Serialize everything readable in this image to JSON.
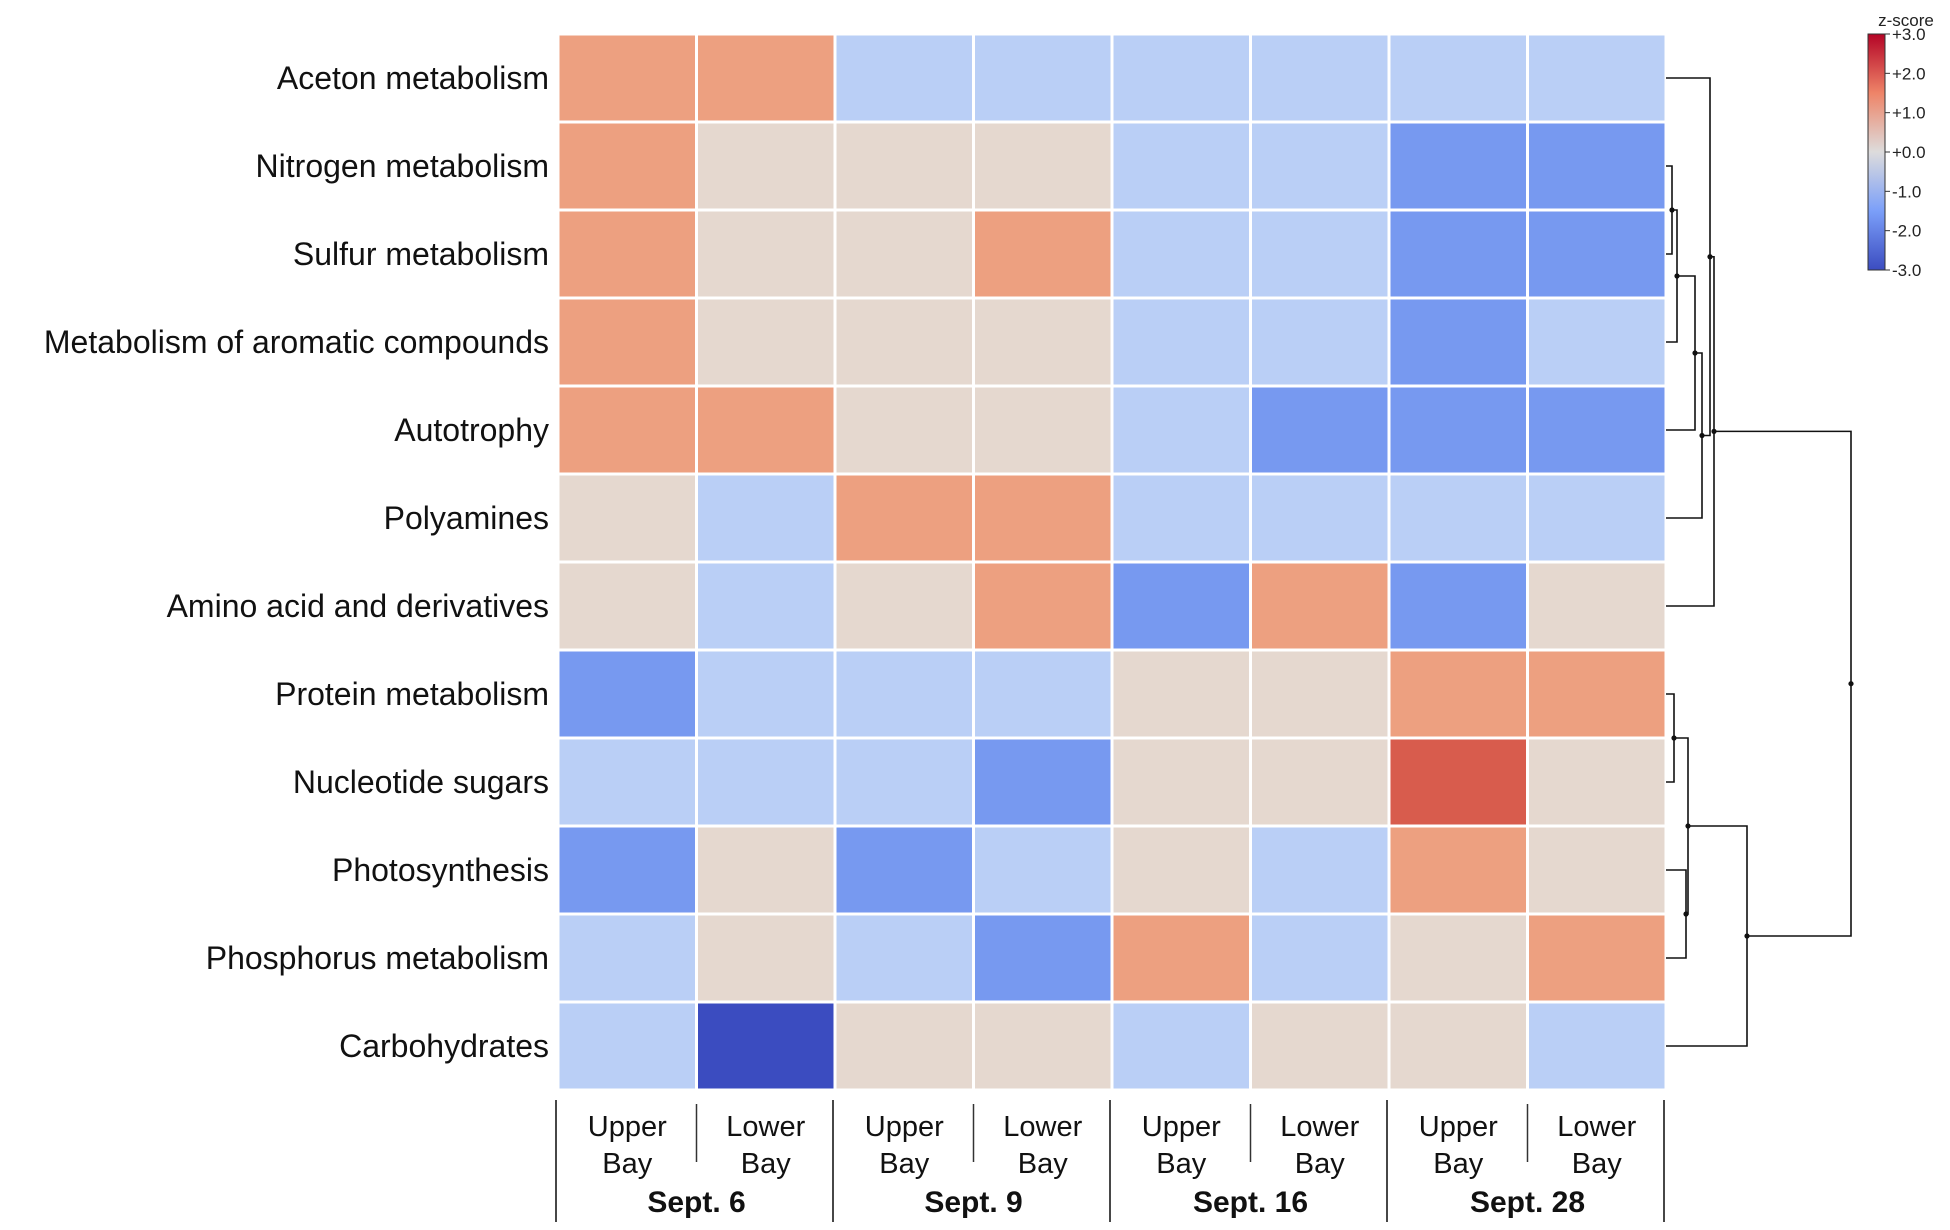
{
  "chart_data": {
    "type": "heatmap",
    "title": "",
    "rows": [
      "Aceton metabolism",
      "Nitrogen metabolism",
      "Sulfur metabolism",
      "Metabolism of aromatic compounds",
      "Autotrophy",
      "Polyamines",
      "Amino acid and derivatives",
      "Protein metabolism",
      "Nucleotide sugars",
      "Photosynthesis",
      "Phosphorus metabolism",
      "Carbohydrates"
    ],
    "columns": [
      {
        "label_top": "Upper",
        "label_bottom": "Bay",
        "group": "Sept. 6"
      },
      {
        "label_top": "Lower",
        "label_bottom": "Bay",
        "group": "Sept. 6"
      },
      {
        "label_top": "Upper",
        "label_bottom": "Bay",
        "group": "Sept. 9"
      },
      {
        "label_top": "Lower",
        "label_bottom": "Bay",
        "group": "Sept. 9"
      },
      {
        "label_top": "Upper",
        "label_bottom": "Bay",
        "group": "Sept. 16"
      },
      {
        "label_top": "Lower",
        "label_bottom": "Bay",
        "group": "Sept. 16"
      },
      {
        "label_top": "Upper",
        "label_bottom": "Bay",
        "group": "Sept. 28"
      },
      {
        "label_top": "Lower",
        "label_bottom": "Bay",
        "group": "Sept. 28"
      }
    ],
    "groups": [
      "Sept. 6",
      "Sept. 9",
      "Sept. 16",
      "Sept. 28"
    ],
    "values": [
      [
        1.5,
        1.5,
        -1.0,
        -1.0,
        -1.0,
        -1.0,
        -1.0,
        -1.0
      ],
      [
        1.5,
        0.0,
        0.0,
        0.0,
        -1.0,
        -1.0,
        -2.0,
        -2.0
      ],
      [
        1.5,
        0.0,
        0.0,
        1.5,
        -1.0,
        -1.0,
        -2.0,
        -2.0
      ],
      [
        1.5,
        0.0,
        0.0,
        0.0,
        -1.0,
        -1.0,
        -2.0,
        -1.0
      ],
      [
        1.5,
        1.5,
        0.0,
        0.0,
        -1.0,
        -2.0,
        -2.0,
        -2.0
      ],
      [
        0.0,
        -1.0,
        1.5,
        1.5,
        -1.0,
        -1.0,
        -1.0,
        -1.0
      ],
      [
        0.0,
        -1.0,
        0.0,
        1.5,
        -2.0,
        1.5,
        -2.0,
        0.0
      ],
      [
        -2.0,
        -1.0,
        -1.0,
        -1.0,
        0.0,
        0.0,
        1.5,
        1.5
      ],
      [
        -1.0,
        -1.0,
        -1.0,
        -2.0,
        0.0,
        0.0,
        2.5,
        0.0
      ],
      [
        -2.0,
        0.0,
        -2.0,
        -1.0,
        0.0,
        -1.0,
        1.5,
        0.0
      ],
      [
        -1.0,
        0.0,
        -1.0,
        -2.0,
        1.5,
        -1.0,
        0.0,
        1.5
      ],
      [
        -1.0,
        -3.0,
        0.0,
        0.0,
        -1.0,
        0.0,
        0.0,
        -1.0
      ]
    ],
    "colorbar": {
      "title": "z-score",
      "ticks": [
        "+3.0",
        "+2.0",
        "+1.0",
        "+0.0",
        "-1.0",
        "-2.0",
        "-3.0"
      ],
      "range": [
        -3,
        3
      ],
      "colors": {
        "low": "#3b4cc0",
        "mid": "#dddcdc",
        "high": "#b40426"
      }
    },
    "dendrogram": "rows",
    "legend_position": "top-right"
  }
}
